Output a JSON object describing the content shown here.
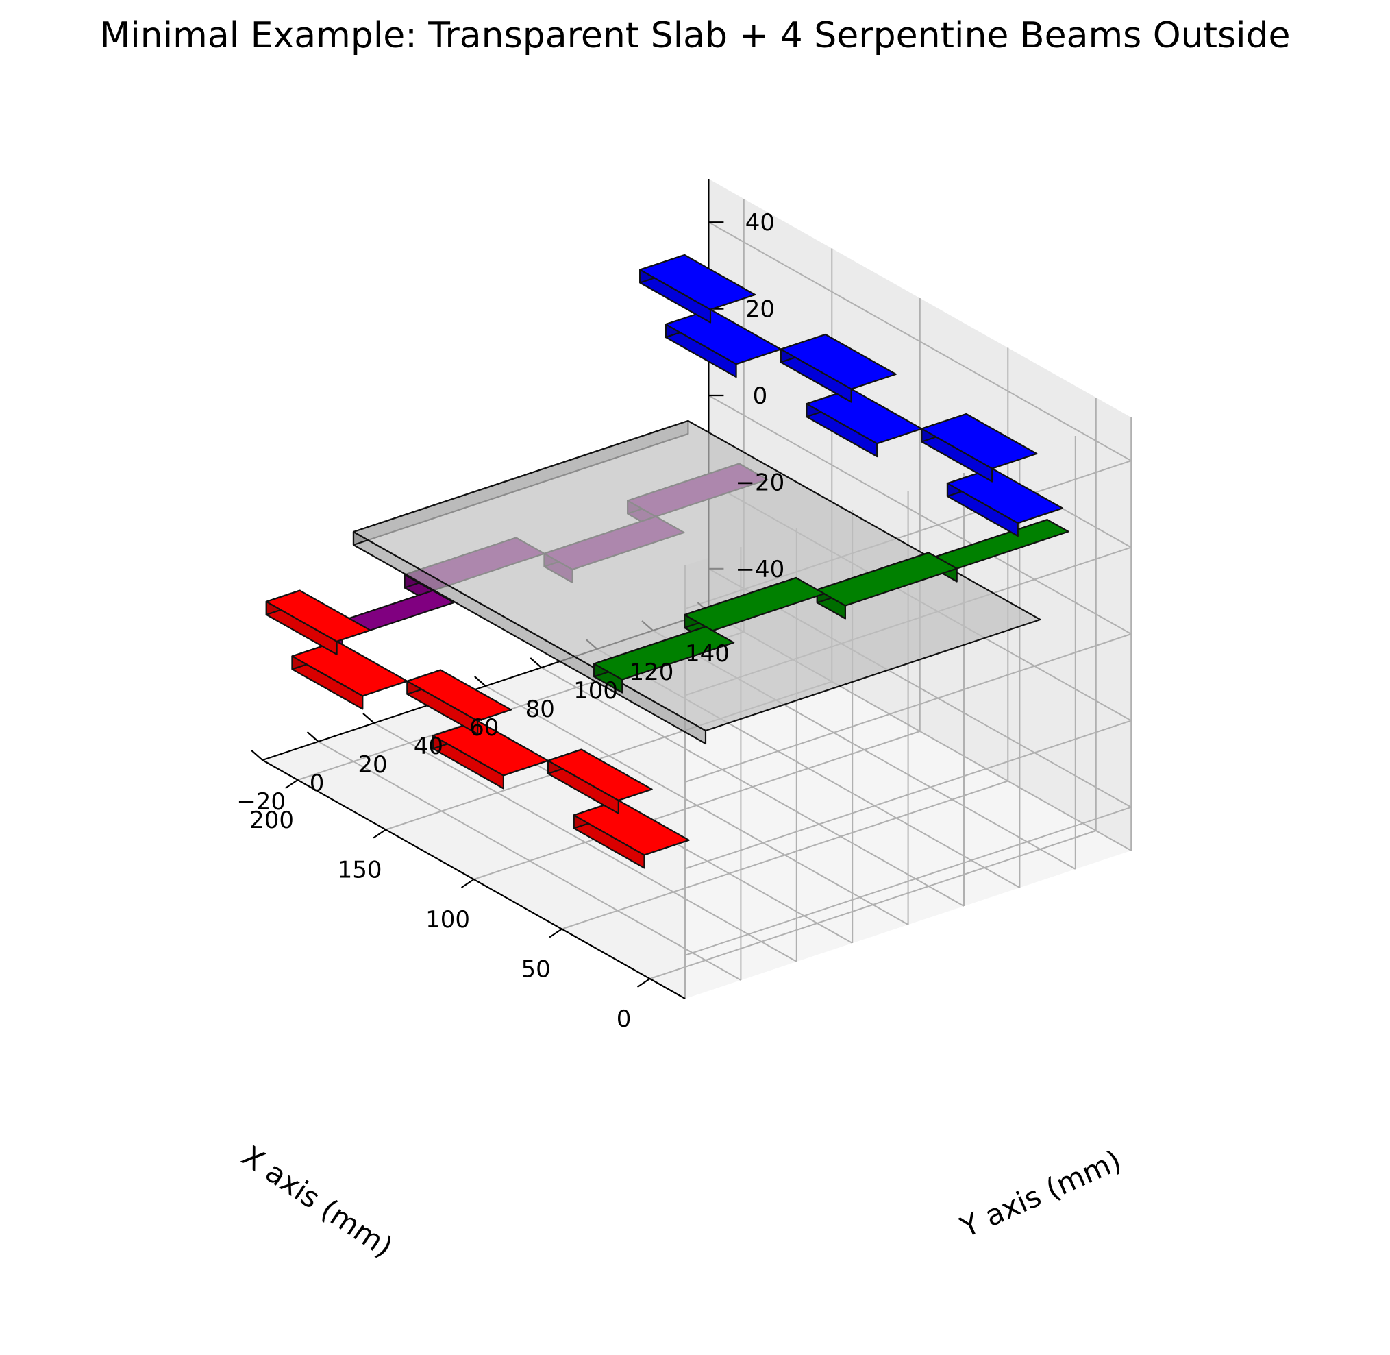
{
  "chart_data": {
    "type": "3d-bar",
    "title": "Minimal Example: Transparent Slab + 4 Serpentine Beams Outside",
    "xlabel": "X axis (mm)",
    "ylabel": "Y axis (mm)",
    "zlabel": "",
    "xlim": [
      -20,
      220
    ],
    "ylim": [
      -20,
      140
    ],
    "zlim": [
      -50,
      50
    ],
    "xticks": [
      "0",
      "50",
      "100",
      "150",
      "200"
    ],
    "yticks": [
      "−20",
      "0",
      "20",
      "40",
      "60",
      "80",
      "100",
      "120",
      "140"
    ],
    "zticks": [
      "−40",
      "−20",
      "0",
      "20",
      "40"
    ],
    "grid": true,
    "slab": {
      "x": [
        0,
        200
      ],
      "y": [
        0,
        120
      ],
      "z": [
        0,
        3
      ],
      "color": "#c0c0c0",
      "alpha": 0.7
    },
    "beams": [
      {
        "name": "red",
        "color": "#ff0000",
        "boxes": [
          {
            "x": [
              0,
              40
            ],
            "y": [
              -22,
              -6
            ],
            "z": [
              -24,
              -21
            ]
          },
          {
            "x": [
              40,
              80
            ],
            "y": [
              -6,
              6
            ],
            "z": [
              -24,
              -21
            ]
          },
          {
            "x": [
              80,
              120
            ],
            "y": [
              -22,
              -6
            ],
            "z": [
              -24,
              -21
            ]
          },
          {
            "x": [
              120,
              160
            ],
            "y": [
              -6,
              6
            ],
            "z": [
              -24,
              -21
            ]
          },
          {
            "x": [
              160,
              200
            ],
            "y": [
              -22,
              -6
            ],
            "z": [
              -24,
              -21
            ]
          },
          {
            "x": [
              200,
              240
            ],
            "y": [
              -6,
              6
            ],
            "z": [
              -24,
              -21
            ]
          }
        ]
      },
      {
        "name": "purple",
        "color": "#800080",
        "boxes": [
          {
            "x": [
              200,
              212
            ],
            "y": [
              -4,
              36
            ],
            "z": [
              -24,
              -21
            ]
          },
          {
            "x": [
              212,
              228
            ],
            "y": [
              36,
              76
            ],
            "z": [
              -24,
              -21
            ]
          },
          {
            "x": [
              196,
              212
            ],
            "y": [
              76,
              116
            ],
            "z": [
              -24,
              -21
            ]
          },
          {
            "x": [
              212,
              228
            ],
            "y": [
              116,
              156
            ],
            "z": [
              -24,
              -21
            ]
          }
        ]
      },
      {
        "name": "blue",
        "color": "#0000ff",
        "boxes": [
          {
            "x": [
              200,
              240
            ],
            "y": [
              128,
              144
            ],
            "z": [
              24,
              27
            ]
          },
          {
            "x": [
              160,
              200
            ],
            "y": [
              112,
              128
            ],
            "z": [
              24,
              27
            ]
          },
          {
            "x": [
              120,
              160
            ],
            "y": [
              128,
              144
            ],
            "z": [
              24,
              27
            ]
          },
          {
            "x": [
              80,
              120
            ],
            "y": [
              112,
              128
            ],
            "z": [
              24,
              27
            ]
          },
          {
            "x": [
              40,
              80
            ],
            "y": [
              128,
              144
            ],
            "z": [
              24,
              27
            ]
          },
          {
            "x": [
              0,
              40
            ],
            "y": [
              112,
              128
            ],
            "z": [
              24,
              27
            ]
          }
        ]
      },
      {
        "name": "green",
        "color": "#008000",
        "boxes": [
          {
            "x": [
              -16,
              -4
            ],
            "y": [
              80,
              120
            ],
            "z": [
              24,
              27
            ]
          },
          {
            "x": [
              -16,
              0
            ],
            "y": [
              40,
              80
            ],
            "z": [
              24,
              27
            ]
          },
          {
            "x": [
              -4,
              12
            ],
            "y": [
              0,
              40
            ],
            "z": [
              24,
              27
            ]
          },
          {
            "x": [
              -16,
              0
            ],
            "y": [
              -40,
              0
            ],
            "z": [
              24,
              27
            ]
          }
        ]
      }
    ]
  }
}
